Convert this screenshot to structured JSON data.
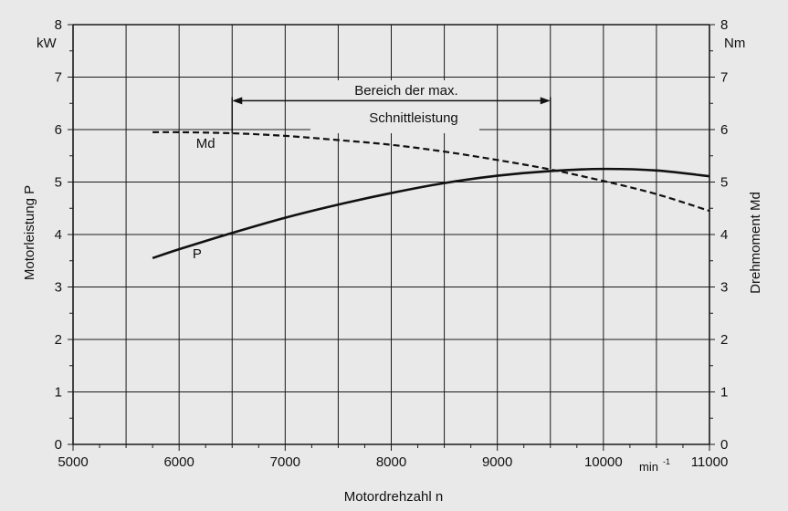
{
  "colors": {
    "background": "#e9e9e9",
    "ink": "#111111",
    "grid": "#1a1a1a"
  },
  "chart_data": {
    "type": "line",
    "xlabel": "Motordrehzahl  n",
    "x_unit": "min",
    "x_unit_exponent": "-1",
    "ylabel_left": "Motorleistung  P",
    "y_unit_left": "kW",
    "ylabel_right": "Drehmoment  Md",
    "y_unit_right": "Nm",
    "xlim": [
      5000,
      11000
    ],
    "ylim_left": [
      0,
      8
    ],
    "ylim_right": [
      0,
      8
    ],
    "x_ticks": [
      5000,
      6000,
      7000,
      8000,
      9000,
      10000,
      11000
    ],
    "x_tick_labels": [
      "5000",
      "6000",
      "7000",
      "8000",
      "9000",
      "10000",
      "11000"
    ],
    "y_ticks": [
      0,
      1,
      2,
      3,
      4,
      5,
      6,
      7,
      8
    ],
    "y_tick_labels": [
      "0",
      "1",
      "2",
      "3",
      "4",
      "5",
      "6",
      "7",
      "8"
    ],
    "grid": true,
    "series": [
      {
        "name": "P",
        "axis": "left",
        "style": "solid",
        "x": [
          5750,
          6000,
          6500,
          7000,
          7500,
          8000,
          8500,
          9000,
          9500,
          10000,
          10500,
          11000
        ],
        "y": [
          3.55,
          3.72,
          4.03,
          4.32,
          4.57,
          4.79,
          4.98,
          5.12,
          5.21,
          5.25,
          5.22,
          5.11
        ]
      },
      {
        "name": "Md",
        "axis": "right",
        "style": "dashed",
        "x": [
          5750,
          6000,
          6500,
          7000,
          7500,
          8000,
          8500,
          9000,
          9500,
          10000,
          10500,
          11000
        ],
        "y": [
          5.95,
          5.95,
          5.93,
          5.88,
          5.8,
          5.71,
          5.58,
          5.42,
          5.24,
          5.02,
          4.77,
          4.45
        ]
      }
    ],
    "annotations": {
      "region": {
        "line1": "Bereich der max.",
        "line2": "Schnittleistung",
        "x_start": 6500,
        "x_end": 9500,
        "y": 6.55
      },
      "label_Md": {
        "text": "Md",
        "x": 6250,
        "y": 5.65
      },
      "label_P": {
        "text": "P",
        "x": 6170,
        "y": 3.55
      }
    }
  }
}
